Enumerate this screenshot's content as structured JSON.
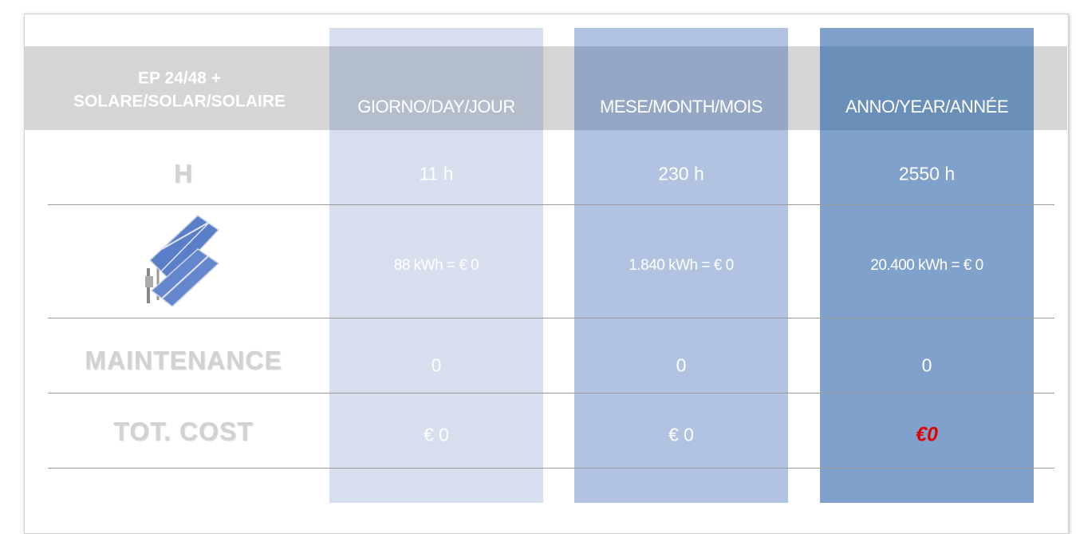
{
  "table": {
    "corner": [
      "EP 24/48 +",
      "SOLARE/SOLAR/SOLAIRE"
    ],
    "columns": [
      "GIORNO/DAY/JOUR",
      "MESE/MONTH/MOIS",
      "ANNO/YEAR/ANNÉE"
    ],
    "rows": [
      {
        "label": "H",
        "cells": [
          "11 h",
          "230 h",
          "2550 h"
        ]
      },
      {
        "cells": [
          "88 kWh = € 0",
          "1.840 kWh = € 0",
          "20.400 kWh = € 0"
        ]
      },
      {
        "label": "MAINTENANCE",
        "cells": [
          "0",
          "0",
          "0"
        ]
      },
      {
        "label": "TOT. COST",
        "cells": [
          "€ 0",
          "€ 0",
          "€0"
        ]
      }
    ]
  }
}
